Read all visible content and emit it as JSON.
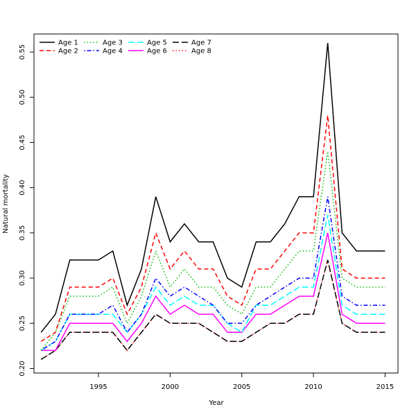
{
  "chart_data": {
    "type": "line",
    "title": "",
    "xlabel": "Year",
    "ylabel": "Natural mortality",
    "xlim": [
      1990.5,
      2015.9
    ],
    "ylim": [
      0.195,
      0.57
    ],
    "x_ticks": [
      "1995",
      "2000",
      "2005",
      "2010",
      "2015"
    ],
    "y_ticks": [
      "0.20",
      "0.25",
      "0.30",
      "0.35",
      "0.40",
      "0.45",
      "0.50",
      "0.55"
    ],
    "grid": false,
    "legend_position": "top-left",
    "x": [
      1991,
      1992,
      1993,
      1994,
      1995,
      1996,
      1997,
      1998,
      1999,
      2000,
      2001,
      2002,
      2003,
      2004,
      2005,
      2006,
      2007,
      2008,
      2009,
      2010,
      2011,
      2012,
      2013,
      2014,
      2015
    ],
    "series": [
      {
        "name": "Age 1",
        "color": "#000000",
        "dash": "solid",
        "values": [
          0.24,
          0.26,
          0.32,
          0.32,
          0.32,
          0.33,
          0.27,
          0.31,
          0.39,
          0.34,
          0.36,
          0.34,
          0.34,
          0.3,
          0.29,
          0.34,
          0.34,
          0.36,
          0.39,
          0.39,
          0.56,
          0.35,
          0.33,
          0.33,
          0.33
        ]
      },
      {
        "name": "Age 2",
        "color": "#ff0000",
        "dash": "dashed",
        "values": [
          0.23,
          0.24,
          0.29,
          0.29,
          0.29,
          0.3,
          0.26,
          0.29,
          0.35,
          0.31,
          0.33,
          0.31,
          0.31,
          0.28,
          0.27,
          0.31,
          0.31,
          0.33,
          0.35,
          0.35,
          0.48,
          0.31,
          0.3,
          0.3,
          0.3
        ]
      },
      {
        "name": "Age 3",
        "color": "#00bb00",
        "dash": "dotted",
        "values": [
          0.22,
          0.24,
          0.28,
          0.28,
          0.28,
          0.29,
          0.25,
          0.28,
          0.33,
          0.29,
          0.31,
          0.29,
          0.29,
          0.27,
          0.26,
          0.29,
          0.29,
          0.31,
          0.33,
          0.33,
          0.44,
          0.3,
          0.29,
          0.29,
          0.29
        ]
      },
      {
        "name": "Age 4",
        "color": "#0000ff",
        "dash": "dotdash",
        "values": [
          0.22,
          0.23,
          0.26,
          0.26,
          0.26,
          0.27,
          0.24,
          0.26,
          0.3,
          0.28,
          0.29,
          0.28,
          0.27,
          0.25,
          0.25,
          0.27,
          0.28,
          0.29,
          0.3,
          0.3,
          0.39,
          0.28,
          0.27,
          0.27,
          0.27
        ]
      },
      {
        "name": "Age 5",
        "color": "#00ffff",
        "dash": "longdash",
        "values": [
          0.22,
          0.23,
          0.26,
          0.26,
          0.26,
          0.26,
          0.24,
          0.26,
          0.29,
          0.27,
          0.28,
          0.27,
          0.27,
          0.25,
          0.24,
          0.27,
          0.27,
          0.28,
          0.29,
          0.29,
          0.37,
          0.27,
          0.26,
          0.26,
          0.26
        ]
      },
      {
        "name": "Age 6",
        "color": "#ff00ff",
        "dash": "solid",
        "values": [
          0.22,
          0.22,
          0.25,
          0.25,
          0.25,
          0.25,
          0.23,
          0.25,
          0.28,
          0.26,
          0.27,
          0.26,
          0.26,
          0.24,
          0.24,
          0.26,
          0.26,
          0.27,
          0.28,
          0.28,
          0.35,
          0.26,
          0.25,
          0.25,
          0.25
        ]
      },
      {
        "name": "Age 7",
        "color": "#000000",
        "dash": "longdash",
        "values": [
          0.21,
          0.22,
          0.24,
          0.24,
          0.24,
          0.24,
          0.22,
          0.24,
          0.26,
          0.25,
          0.25,
          0.25,
          0.24,
          0.23,
          0.23,
          0.24,
          0.25,
          0.25,
          0.26,
          0.26,
          0.32,
          0.25,
          0.24,
          0.24,
          0.24
        ]
      },
      {
        "name": "Age 8",
        "color": "#ff0000",
        "dash": "dotted",
        "values": [
          0.21,
          0.22,
          0.24,
          0.24,
          0.24,
          0.24,
          0.22,
          0.24,
          0.26,
          0.25,
          0.25,
          0.25,
          0.24,
          0.23,
          0.23,
          0.24,
          0.25,
          0.25,
          0.26,
          0.26,
          0.32,
          0.25,
          0.24,
          0.24,
          0.24
        ]
      }
    ]
  }
}
